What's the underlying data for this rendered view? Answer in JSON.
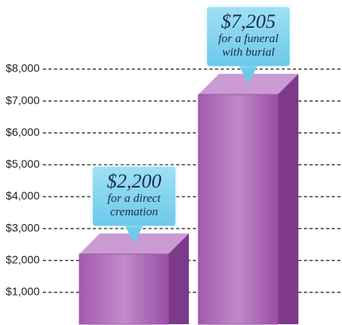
{
  "chart_data": {
    "type": "bar",
    "categories": [
      "for a direct cremation",
      "for a funeral with burial"
    ],
    "values": [
      2200,
      7205
    ],
    "value_labels": [
      "$2,200",
      "$7,205"
    ],
    "color": "#9c52a8",
    "ylim": [
      0,
      8000
    ],
    "yticks": [
      {
        "value": 1000,
        "label": "$1,000"
      },
      {
        "value": 2000,
        "label": "$2,000"
      },
      {
        "value": 3000,
        "label": "$3,000"
      },
      {
        "value": 4000,
        "label": "$4,000"
      },
      {
        "value": 5000,
        "label": "$5,000"
      },
      {
        "value": 6000,
        "label": "$6,000"
      },
      {
        "value": 7000,
        "label": "$7,000"
      },
      {
        "value": 8000,
        "label": "$8,000"
      }
    ],
    "grid": true
  }
}
